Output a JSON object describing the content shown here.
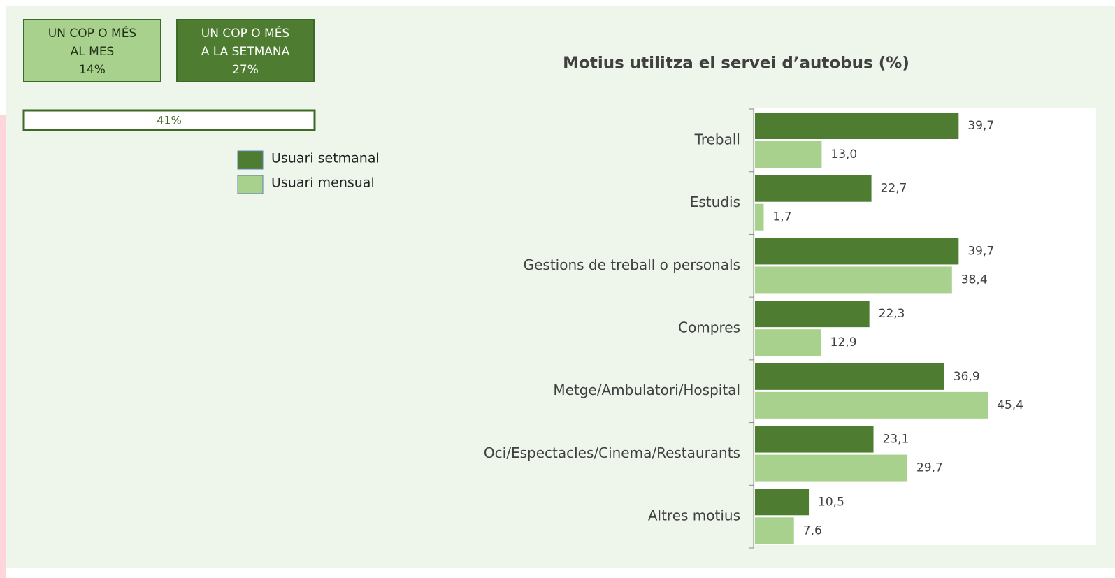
{
  "boxes": [
    {
      "lines": [
        "UN COP O MÉS",
        "AL MES",
        "14%"
      ]
    },
    {
      "lines": [
        "UN COP O MÉS",
        "A LA SETMANA",
        "27%"
      ]
    }
  ],
  "total_label": "41%",
  "chart_data": {
    "type": "bar",
    "orientation": "horizontal",
    "title": "Motius utilitza el servei d’autobus (%)",
    "categories": [
      "Treball",
      "Estudis",
      "Gestions de treball o personals",
      "Compres",
      "Metge/Ambulatori/Hospital",
      "Oci/Espectacles/Cinema/Restaurants",
      "Altres motius"
    ],
    "series": [
      {
        "name": "Usuari setmanal",
        "color": "#4e7d32",
        "values": [
          39.7,
          22.7,
          39.7,
          22.3,
          36.9,
          23.1,
          10.5
        ],
        "value_labels": [
          "39,7",
          "22,7",
          "39,7",
          "22,3",
          "36,9",
          "23,1",
          "10,5"
        ]
      },
      {
        "name": "Usuari mensual",
        "color": "#a9d18e",
        "values": [
          13.0,
          1.7,
          38.4,
          12.9,
          45.4,
          29.7,
          7.6
        ],
        "value_labels": [
          "13,0",
          "1,7",
          "38,4",
          "12,9",
          "45,4",
          "29,7",
          "7,6"
        ]
      }
    ],
    "xlim": [
      0,
      66.5
    ]
  }
}
